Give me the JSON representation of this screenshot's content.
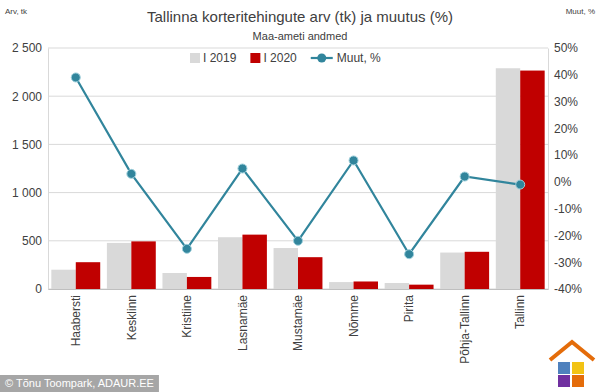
{
  "chart_data": {
    "type": "bar",
    "title": "Tallinna korteritehingute arv (tk) ja muutus (%)",
    "subtitle": "Maa-ameti andmed",
    "y_label": "Arv, tk",
    "y2_label": "Muut, %",
    "source": "© Tõnu Toompark, ADAUR.EE",
    "categories": [
      "Haabersti",
      "Kesklinn",
      "Kristiine",
      "Lasnamäe",
      "Mustamäe",
      "Nõmme",
      "Pirita",
      "Põhja-Tallinn",
      "Tallinn"
    ],
    "series": [
      {
        "name": "I 2019",
        "color": "#d9d9d9",
        "values": [
          200,
          478,
          166,
          537,
          425,
          72,
          62,
          378,
          2290
        ]
      },
      {
        "name": "I 2020",
        "color": "#c00000",
        "values": [
          278,
          494,
          125,
          564,
          330,
          78,
          45,
          386,
          2266
        ]
      },
      {
        "name": "Muut, %",
        "color": "#31859c",
        "type": "line",
        "axis": "y2",
        "marker": "circle",
        "values": [
          39,
          3,
          -25,
          5,
          -22,
          8,
          -27,
          2,
          -1
        ]
      }
    ],
    "ylim": [
      0,
      2500
    ],
    "yticks": [
      0,
      500,
      {
        "value": 1000,
        "label": "1 000"
      },
      {
        "value": 1500,
        "label": "1 500"
      },
      {
        "value": 2000,
        "label": "2 000"
      },
      {
        "value": 2500,
        "label": "2 500"
      }
    ],
    "y2lim": [
      -40,
      50
    ],
    "y2ticks": [
      {
        "value": -40,
        "label": "-40%"
      },
      {
        "value": -30,
        "label": "-30%"
      },
      {
        "value": -20,
        "label": "-20%"
      },
      {
        "value": -10,
        "label": "-10%"
      },
      {
        "value": 0,
        "label": "0%"
      },
      {
        "value": 10,
        "label": "10%"
      },
      {
        "value": 20,
        "label": "20%"
      },
      {
        "value": 30,
        "label": "30%"
      },
      {
        "value": 40,
        "label": "40%"
      },
      {
        "value": 50,
        "label": "50%"
      }
    ],
    "grid": true,
    "legend": "top"
  }
}
